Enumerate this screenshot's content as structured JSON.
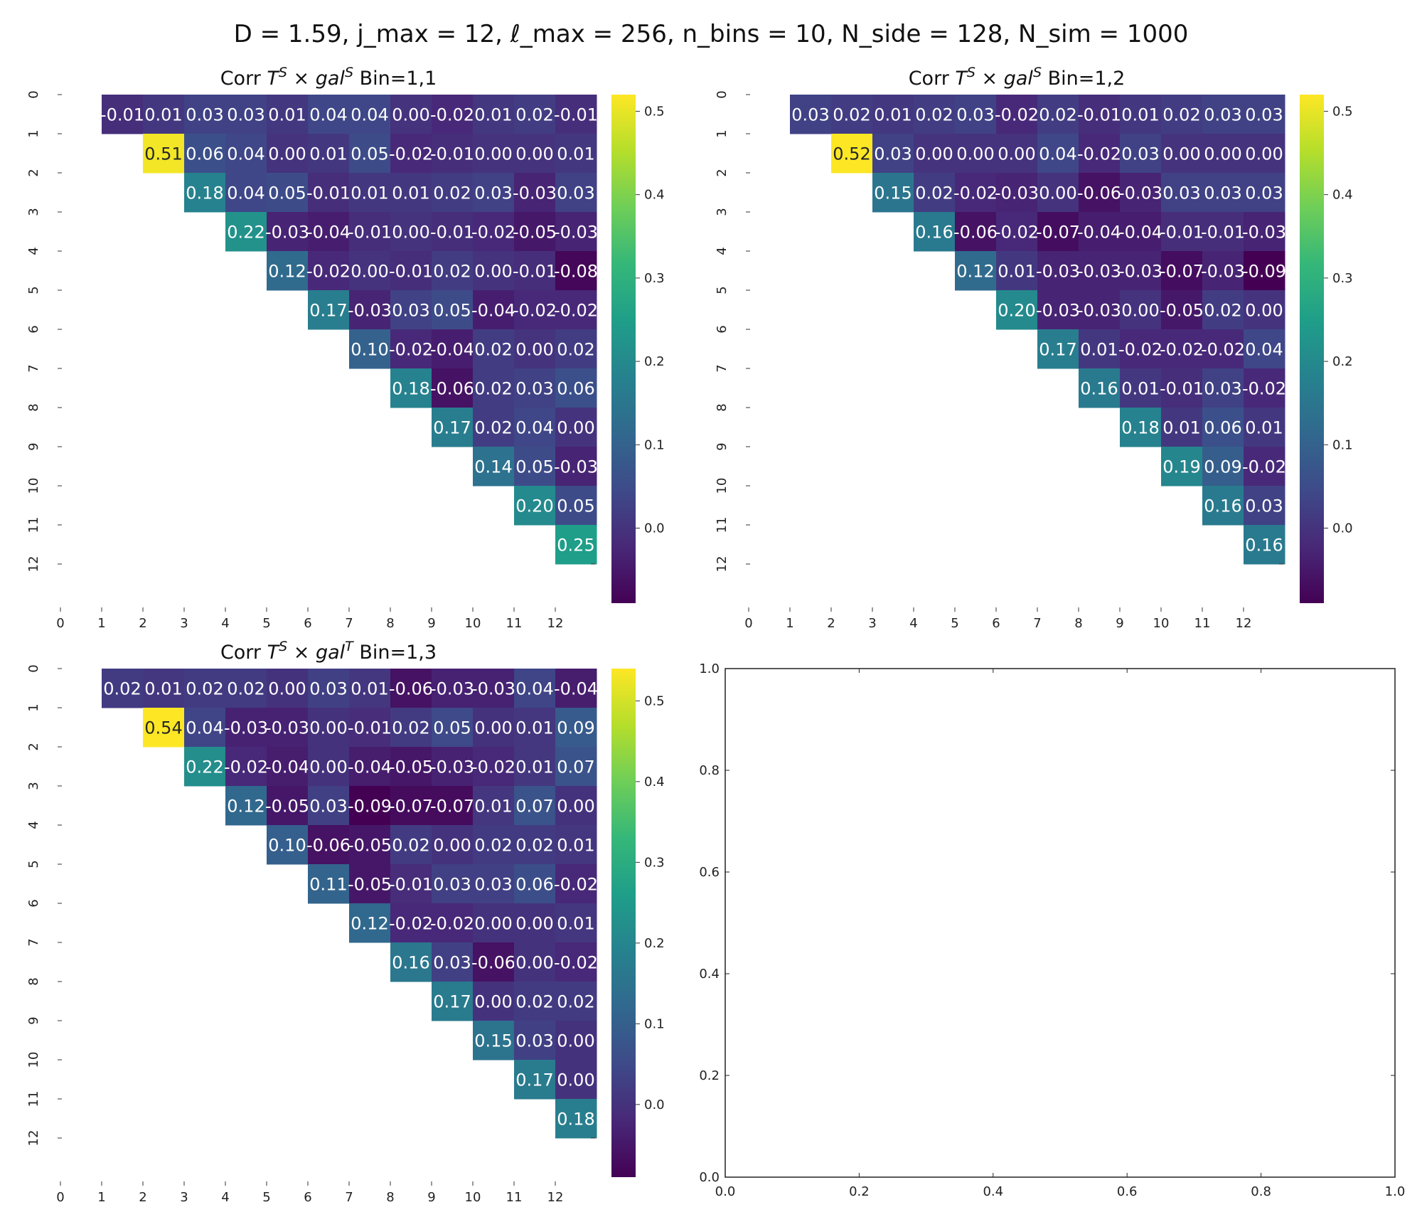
{
  "figure": {
    "suptitle": "D = 1.59,  j_max = 12,  ℓ_max = 256,  n_bins = 10,  N_side = 128, N_sim = 1000"
  },
  "colormap": {
    "name": "viridis",
    "stops": [
      "#440154",
      "#482878",
      "#3e4a89",
      "#31688e",
      "#26828e",
      "#1f9e89",
      "#35b779",
      "#6ece58",
      "#b5de2b",
      "#fde725"
    ]
  },
  "chart_data": [
    {
      "type": "heatmap",
      "title": "Corr T^S × gal^S Bin=1,1",
      "x_ticks": [
        "0",
        "1",
        "2",
        "3",
        "4",
        "5",
        "6",
        "7",
        "8",
        "9",
        "10",
        "11",
        "12"
      ],
      "y_ticks": [
        "0",
        "1",
        "2",
        "3",
        "4",
        "5",
        "6",
        "7",
        "8",
        "9",
        "10",
        "11",
        "12"
      ],
      "mask": "upper-triangle-offset",
      "vmin": -0.09,
      "vmax": 0.52,
      "colorbar_ticks": [
        "0.0",
        "0.1",
        "0.2",
        "0.3",
        "0.4",
        "0.5"
      ],
      "rows": [
        [
          -0.01,
          0.01,
          0.03,
          0.03,
          0.01,
          0.04,
          0.04,
          0.0,
          -0.02,
          0.01,
          0.02,
          -0.01
        ],
        [
          0.51,
          0.06,
          0.04,
          0.0,
          0.01,
          0.05,
          -0.02,
          -0.01,
          0.0,
          -0.0,
          0.01
        ],
        [
          0.18,
          0.04,
          0.05,
          -0.01,
          0.01,
          0.01,
          0.02,
          0.03,
          -0.03,
          0.03
        ],
        [
          0.22,
          -0.03,
          -0.04,
          -0.01,
          -0.0,
          -0.01,
          -0.02,
          -0.05,
          -0.03
        ],
        [
          0.12,
          -0.02,
          -0.0,
          -0.01,
          0.02,
          0.0,
          -0.01,
          -0.08
        ],
        [
          0.17,
          -0.03,
          0.03,
          0.05,
          -0.04,
          -0.02,
          -0.02
        ],
        [
          0.1,
          -0.02,
          -0.04,
          0.02,
          -0.0,
          0.02
        ],
        [
          0.18,
          -0.06,
          0.02,
          0.03,
          0.06
        ],
        [
          0.17,
          0.02,
          0.04,
          0.0
        ],
        [
          0.14,
          0.05,
          -0.03
        ],
        [
          0.2,
          0.05
        ],
        [
          0.25
        ]
      ]
    },
    {
      "type": "heatmap",
      "title": "Corr T^S × gal^S Bin=1,2",
      "x_ticks": [
        "0",
        "1",
        "2",
        "3",
        "4",
        "5",
        "6",
        "7",
        "8",
        "9",
        "10",
        "11",
        "12"
      ],
      "y_ticks": [
        "0",
        "1",
        "2",
        "3",
        "4",
        "5",
        "6",
        "7",
        "8",
        "9",
        "10",
        "11",
        "12"
      ],
      "mask": "upper-triangle-offset",
      "vmin": -0.09,
      "vmax": 0.52,
      "colorbar_ticks": [
        "0.0",
        "0.1",
        "0.2",
        "0.3",
        "0.4",
        "0.5"
      ],
      "rows": [
        [
          0.03,
          0.02,
          0.01,
          0.02,
          0.03,
          -0.02,
          0.02,
          -0.01,
          0.01,
          0.02,
          0.03,
          0.03
        ],
        [
          0.52,
          0.03,
          0.0,
          0.0,
          0.0,
          0.04,
          -0.02,
          0.03,
          0.0,
          -0.0,
          0.0
        ],
        [
          0.15,
          0.02,
          -0.02,
          -0.03,
          0.0,
          -0.06,
          -0.03,
          0.03,
          0.03,
          0.03
        ],
        [
          0.16,
          -0.06,
          -0.02,
          -0.07,
          -0.04,
          -0.04,
          -0.01,
          -0.01,
          -0.03
        ],
        [
          0.12,
          0.01,
          -0.03,
          -0.03,
          -0.03,
          -0.07,
          -0.03,
          -0.09
        ],
        [
          0.2,
          -0.03,
          -0.03,
          -0.0,
          -0.05,
          0.02,
          0.0
        ],
        [
          0.17,
          0.01,
          -0.02,
          -0.02,
          -0.02,
          0.04
        ],
        [
          0.16,
          0.01,
          -0.01,
          0.03,
          -0.02
        ],
        [
          0.18,
          0.01,
          0.06,
          0.01
        ],
        [
          0.19,
          0.09,
          -0.02
        ],
        [
          0.16,
          0.03
        ],
        [
          0.16
        ]
      ]
    },
    {
      "type": "heatmap",
      "title": "Corr T^S × gal^T Bin=1,3",
      "x_ticks": [
        "0",
        "1",
        "2",
        "3",
        "4",
        "5",
        "6",
        "7",
        "8",
        "9",
        "10",
        "11",
        "12"
      ],
      "y_ticks": [
        "0",
        "1",
        "2",
        "3",
        "4",
        "5",
        "6",
        "7",
        "8",
        "9",
        "10",
        "11",
        "12"
      ],
      "mask": "upper-triangle-offset",
      "vmin": -0.09,
      "vmax": 0.54,
      "colorbar_ticks": [
        "0.0",
        "0.1",
        "0.2",
        "0.3",
        "0.4",
        "0.5"
      ],
      "rows": [
        [
          0.02,
          0.01,
          0.02,
          0.02,
          0.0,
          0.03,
          0.01,
          -0.06,
          -0.03,
          -0.03,
          0.04,
          -0.04
        ],
        [
          0.54,
          0.04,
          -0.03,
          -0.03,
          -0.0,
          -0.01,
          0.02,
          0.05,
          0.0,
          0.01,
          0.09
        ],
        [
          0.22,
          -0.02,
          -0.04,
          0.0,
          -0.04,
          -0.05,
          -0.03,
          -0.02,
          0.01,
          0.07
        ],
        [
          0.12,
          -0.05,
          0.03,
          -0.09,
          -0.07,
          -0.07,
          0.01,
          0.07,
          0.0
        ],
        [
          0.1,
          -0.06,
          -0.05,
          0.02,
          0.0,
          0.02,
          0.02,
          0.01
        ],
        [
          0.11,
          -0.05,
          -0.01,
          0.03,
          0.03,
          0.06,
          -0.02
        ],
        [
          0.12,
          -0.02,
          -0.02,
          -0.0,
          0.0,
          0.01
        ],
        [
          0.16,
          0.03,
          -0.06,
          0.0,
          -0.02
        ],
        [
          0.17,
          -0.0,
          0.02,
          0.02
        ],
        [
          0.15,
          0.03,
          0.0
        ],
        [
          0.17,
          -0.0
        ],
        [
          0.18
        ]
      ]
    },
    {
      "type": "empty-axes",
      "title": "",
      "x_ticks": [
        "0.0",
        "0.2",
        "0.4",
        "0.6",
        "0.8",
        "1.0"
      ],
      "y_ticks": [
        "0.0",
        "0.2",
        "0.4",
        "0.6",
        "0.8",
        "1.0"
      ],
      "xlim": [
        0,
        1
      ],
      "ylim": [
        0,
        1
      ]
    }
  ]
}
